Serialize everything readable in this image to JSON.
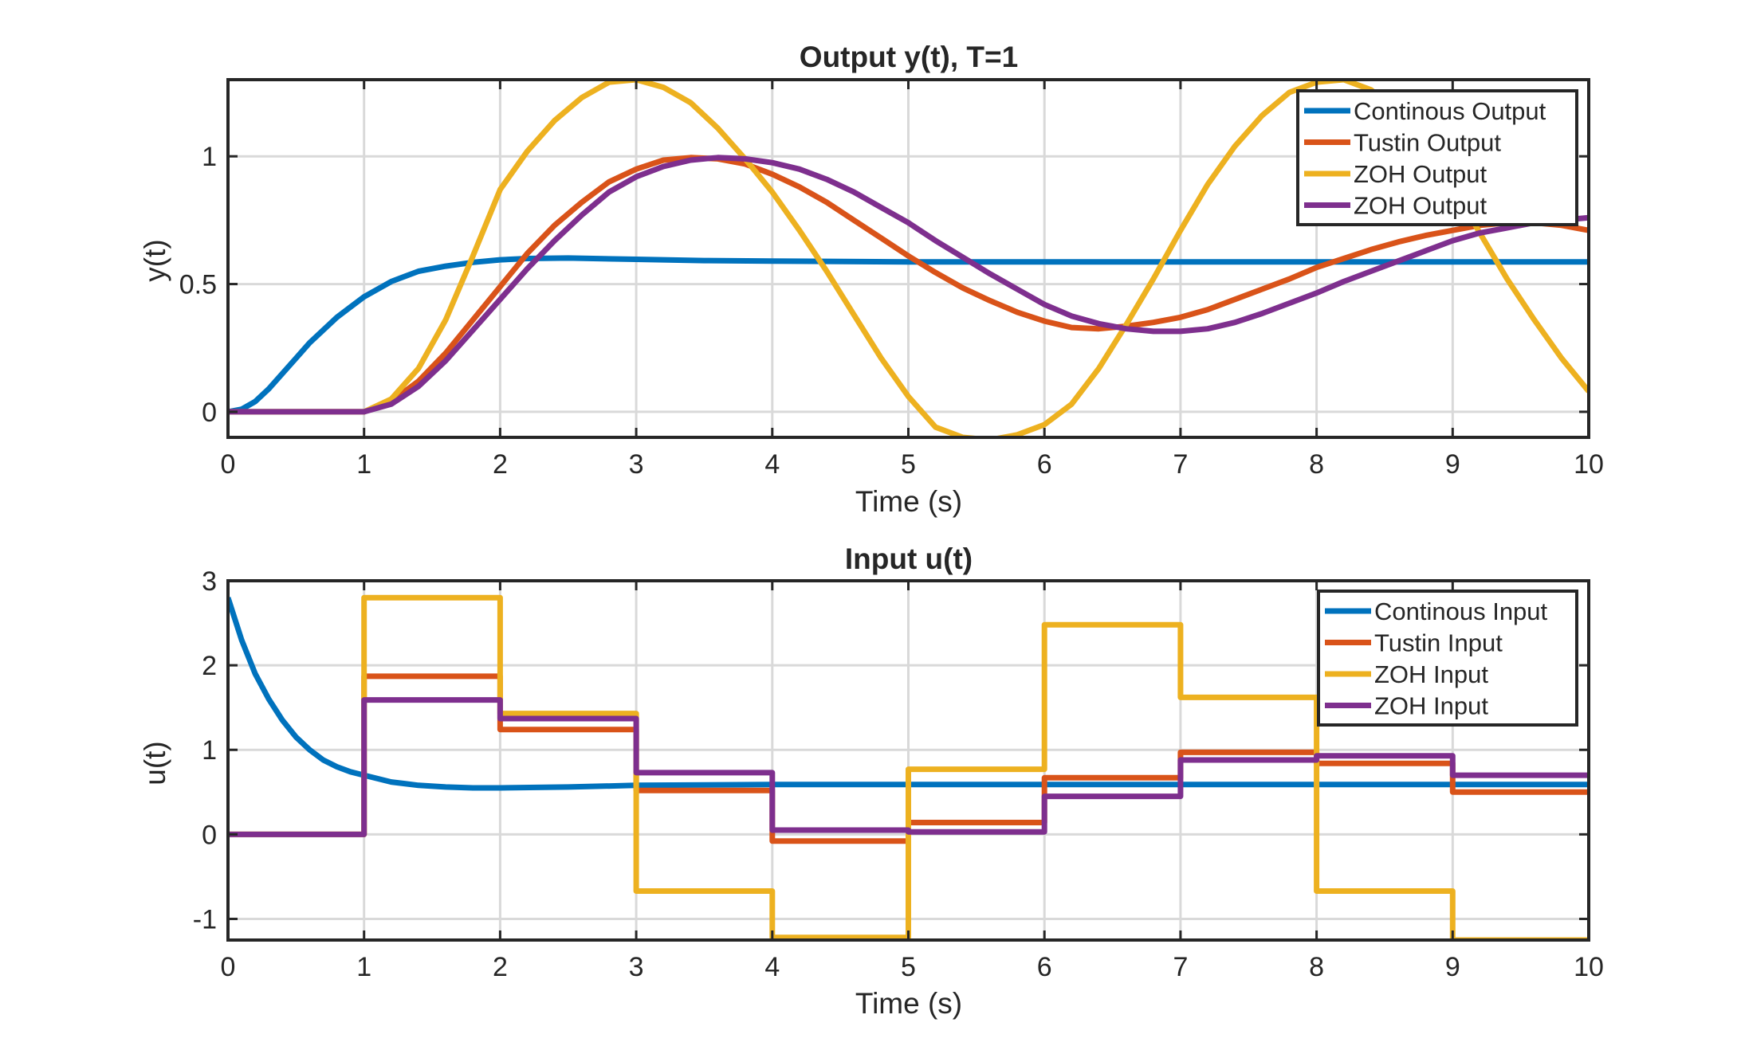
{
  "colors": {
    "blue": "#0072BD",
    "orange": "#D95319",
    "yellow": "#EDB120",
    "purple": "#7E2F8E",
    "grid": "#d9d9d9",
    "axis": "#262626"
  },
  "chart_data": [
    {
      "type": "line",
      "title": "Output y(t), T=1",
      "xlabel": "Time (s)",
      "ylabel": "y(t)",
      "xlim": [
        0,
        10
      ],
      "ylim": [
        -0.1,
        1.3
      ],
      "xticks": [
        "0",
        "1",
        "2",
        "3",
        "4",
        "5",
        "6",
        "7",
        "8",
        "9",
        "10"
      ],
      "yticks": [
        "0",
        "0.5",
        "1"
      ],
      "grid": true,
      "legend_position": "top-right",
      "series": [
        {
          "name": "Continous Output",
          "color": "#0072BD",
          "x": [
            0,
            0.1,
            0.2,
            0.3,
            0.4,
            0.5,
            0.6,
            0.7,
            0.8,
            0.9,
            1.0,
            1.2,
            1.4,
            1.6,
            1.8,
            2.0,
            2.2,
            2.5,
            3.0,
            3.5,
            4.0,
            5.0,
            10.0
          ],
          "y": [
            0,
            0.01,
            0.04,
            0.09,
            0.15,
            0.21,
            0.27,
            0.32,
            0.37,
            0.41,
            0.45,
            0.51,
            0.55,
            0.57,
            0.585,
            0.595,
            0.6,
            0.602,
            0.597,
            0.592,
            0.59,
            0.587,
            0.587
          ]
        },
        {
          "name": "Tustin Output",
          "color": "#D95319",
          "x": [
            0,
            1.0,
            1.2,
            1.4,
            1.6,
            1.8,
            2.0,
            2.2,
            2.4,
            2.6,
            2.8,
            3.0,
            3.2,
            3.4,
            3.6,
            3.8,
            4.0,
            4.2,
            4.4,
            4.6,
            4.8,
            5.0,
            5.2,
            5.4,
            5.6,
            5.8,
            6.0,
            6.2,
            6.4,
            6.6,
            6.8,
            7.0,
            7.2,
            7.4,
            7.6,
            7.8,
            8.0,
            8.2,
            8.4,
            8.6,
            8.8,
            9.0,
            9.2,
            9.4,
            9.6,
            9.8,
            10.0
          ],
          "y": [
            0,
            0,
            0.04,
            0.12,
            0.23,
            0.36,
            0.49,
            0.62,
            0.73,
            0.82,
            0.9,
            0.95,
            0.985,
            0.995,
            0.99,
            0.97,
            0.93,
            0.88,
            0.82,
            0.75,
            0.68,
            0.61,
            0.545,
            0.485,
            0.435,
            0.39,
            0.355,
            0.33,
            0.325,
            0.335,
            0.35,
            0.37,
            0.4,
            0.44,
            0.48,
            0.52,
            0.565,
            0.6,
            0.635,
            0.665,
            0.69,
            0.71,
            0.73,
            0.74,
            0.74,
            0.73,
            0.71
          ]
        },
        {
          "name": "ZOH Output",
          "color": "#EDB120",
          "x": [
            0,
            1.0,
            1.2,
            1.4,
            1.6,
            1.8,
            2.0,
            2.2,
            2.4,
            2.6,
            2.8,
            3.0,
            3.2,
            3.4,
            3.6,
            3.8,
            4.0,
            4.2,
            4.4,
            4.6,
            4.8,
            5.0,
            5.2,
            5.4,
            5.6,
            5.8,
            6.0,
            6.2,
            6.4,
            6.6,
            6.8,
            7.0,
            7.2,
            7.4,
            7.6,
            7.8,
            8.0,
            8.2,
            8.4,
            8.6,
            8.8,
            9.0,
            9.2,
            9.4,
            9.6,
            9.8,
            10.0
          ],
          "y": [
            0,
            0,
            0.05,
            0.17,
            0.36,
            0.61,
            0.87,
            1.02,
            1.14,
            1.23,
            1.29,
            1.3,
            1.27,
            1.21,
            1.11,
            0.99,
            0.86,
            0.71,
            0.55,
            0.38,
            0.21,
            0.06,
            -0.06,
            -0.1,
            -0.11,
            -0.09,
            -0.05,
            0.03,
            0.17,
            0.34,
            0.52,
            0.71,
            0.89,
            1.04,
            1.16,
            1.25,
            1.29,
            1.3,
            1.26,
            1.17,
            1.04,
            0.88,
            0.7,
            0.52,
            0.36,
            0.21,
            0.08
          ]
        },
        {
          "name": "ZOH Output",
          "color": "#7E2F8E",
          "x": [
            0,
            1.0,
            1.2,
            1.4,
            1.6,
            1.8,
            2.0,
            2.2,
            2.4,
            2.6,
            2.8,
            3.0,
            3.2,
            3.4,
            3.6,
            3.8,
            4.0,
            4.2,
            4.4,
            4.6,
            4.8,
            5.0,
            5.2,
            5.4,
            5.6,
            5.8,
            6.0,
            6.2,
            6.4,
            6.6,
            6.8,
            7.0,
            7.2,
            7.4,
            7.6,
            7.8,
            8.0,
            8.2,
            8.4,
            8.6,
            8.8,
            9.0,
            9.2,
            9.4,
            9.6,
            9.8,
            10.0
          ],
          "y": [
            0,
            0,
            0.03,
            0.1,
            0.2,
            0.32,
            0.44,
            0.56,
            0.67,
            0.77,
            0.86,
            0.92,
            0.96,
            0.985,
            0.995,
            0.99,
            0.975,
            0.95,
            0.91,
            0.86,
            0.8,
            0.74,
            0.67,
            0.605,
            0.54,
            0.48,
            0.42,
            0.375,
            0.345,
            0.325,
            0.315,
            0.315,
            0.325,
            0.35,
            0.385,
            0.425,
            0.465,
            0.51,
            0.55,
            0.59,
            0.63,
            0.67,
            0.7,
            0.72,
            0.74,
            0.75,
            0.76
          ]
        }
      ]
    },
    {
      "type": "line",
      "title": "Input u(t)",
      "xlabel": "Time (s)",
      "ylabel": "u(t)",
      "xlim": [
        0,
        10
      ],
      "ylim": [
        -1.25,
        3
      ],
      "xticks": [
        "0",
        "1",
        "2",
        "3",
        "4",
        "5",
        "6",
        "7",
        "8",
        "9",
        "10"
      ],
      "yticks": [
        "-1",
        "0",
        "1",
        "2",
        "3"
      ],
      "grid": true,
      "legend_position": "top-right",
      "series": [
        {
          "name": "Continous Input",
          "color": "#0072BD",
          "x": [
            0,
            0.1,
            0.2,
            0.3,
            0.4,
            0.5,
            0.6,
            0.7,
            0.8,
            0.9,
            1.0,
            1.2,
            1.4,
            1.6,
            1.8,
            2.0,
            2.5,
            3.0,
            4.0,
            10.0
          ],
          "y": [
            2.8,
            2.3,
            1.9,
            1.6,
            1.35,
            1.15,
            1.0,
            0.88,
            0.8,
            0.74,
            0.7,
            0.62,
            0.58,
            0.56,
            0.55,
            0.55,
            0.56,
            0.58,
            0.59,
            0.59
          ]
        },
        {
          "name": "Tustin Input",
          "color": "#D95319",
          "step": true,
          "x": [
            0,
            1,
            2,
            3,
            4,
            5,
            6,
            7,
            8,
            9,
            10
          ],
          "y": [
            0,
            1.87,
            1.24,
            0.52,
            -0.08,
            0.14,
            0.67,
            0.97,
            0.84,
            0.5,
            0.5
          ]
        },
        {
          "name": "ZOH Input",
          "color": "#EDB120",
          "step": true,
          "x": [
            0,
            1,
            2,
            3,
            4,
            5,
            6,
            7,
            8,
            9,
            10
          ],
          "y": [
            0,
            2.8,
            1.43,
            -0.67,
            -1.22,
            0.77,
            2.48,
            1.62,
            -0.67,
            -1.25,
            -1.25
          ]
        },
        {
          "name": "ZOH Input",
          "color": "#7E2F8E",
          "step": true,
          "x": [
            0,
            1,
            2,
            3,
            4,
            5,
            6,
            7,
            8,
            9,
            10
          ],
          "y": [
            0,
            1.59,
            1.37,
            0.73,
            0.05,
            0.03,
            0.45,
            0.88,
            0.93,
            0.7,
            0.7
          ]
        }
      ]
    }
  ]
}
